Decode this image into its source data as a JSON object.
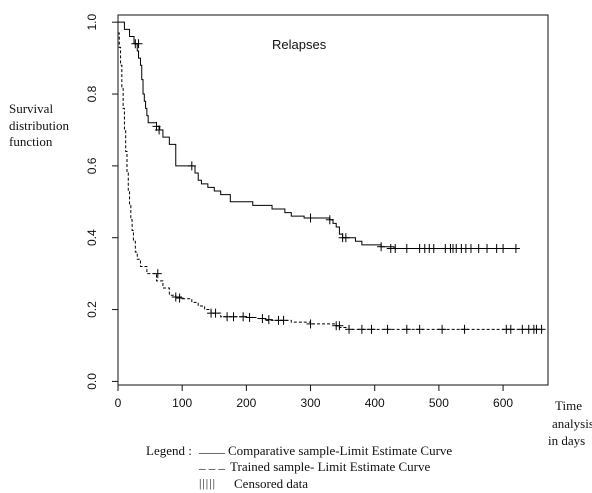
{
  "chart_data": {
    "type": "line",
    "title": "Relapses",
    "ylabel": [
      "Survival",
      "distribution",
      "function"
    ],
    "xlabel": [
      "Time",
      "analysis",
      "in days"
    ],
    "xlim": [
      0,
      670
    ],
    "ylim": [
      -0.01,
      1.02
    ],
    "xticks": [
      0,
      100,
      200,
      300,
      400,
      500,
      600
    ],
    "yticks": [
      0.0,
      0.2,
      0.4,
      0.6,
      0.8,
      1.0
    ],
    "ytick_labels": [
      "0.0",
      "0.2",
      "0.4",
      "0.6",
      "0.8",
      "1.0"
    ],
    "grid": false,
    "series": [
      {
        "key": "comparative",
        "style": "solid",
        "color": "#000000",
        "steps": [
          [
            0,
            1.0
          ],
          [
            10,
            0.98
          ],
          [
            18,
            0.96
          ],
          [
            25,
            0.94
          ],
          [
            30,
            0.92
          ],
          [
            32,
            0.9
          ],
          [
            35,
            0.88
          ],
          [
            37,
            0.84
          ],
          [
            39,
            0.8
          ],
          [
            41,
            0.78
          ],
          [
            43,
            0.76
          ],
          [
            45,
            0.74
          ],
          [
            47,
            0.72
          ],
          [
            60,
            0.71
          ],
          [
            65,
            0.7
          ],
          [
            70,
            0.68
          ],
          [
            80,
            0.66
          ],
          [
            90,
            0.6
          ],
          [
            110,
            0.6
          ],
          [
            120,
            0.58
          ],
          [
            125,
            0.56
          ],
          [
            130,
            0.55
          ],
          [
            140,
            0.54
          ],
          [
            150,
            0.53
          ],
          [
            160,
            0.52
          ],
          [
            175,
            0.5
          ],
          [
            210,
            0.49
          ],
          [
            240,
            0.48
          ],
          [
            260,
            0.47
          ],
          [
            270,
            0.46
          ],
          [
            290,
            0.455
          ],
          [
            330,
            0.45
          ],
          [
            335,
            0.44
          ],
          [
            340,
            0.43
          ],
          [
            345,
            0.41
          ],
          [
            350,
            0.4
          ],
          [
            370,
            0.39
          ],
          [
            380,
            0.38
          ],
          [
            410,
            0.375
          ],
          [
            430,
            0.37
          ],
          [
            620,
            0.37
          ]
        ],
        "censored": [
          [
            27,
            0.94
          ],
          [
            32,
            0.94
          ],
          [
            60,
            0.71
          ],
          [
            64,
            0.7
          ],
          [
            115,
            0.6
          ],
          [
            300,
            0.455
          ],
          [
            330,
            0.45
          ],
          [
            350,
            0.4
          ],
          [
            355,
            0.4
          ],
          [
            410,
            0.375
          ],
          [
            425,
            0.37
          ],
          [
            432,
            0.37
          ],
          [
            450,
            0.37
          ],
          [
            470,
            0.37
          ],
          [
            478,
            0.37
          ],
          [
            485,
            0.37
          ],
          [
            492,
            0.37
          ],
          [
            510,
            0.37
          ],
          [
            518,
            0.37
          ],
          [
            522,
            0.37
          ],
          [
            527,
            0.37
          ],
          [
            535,
            0.37
          ],
          [
            542,
            0.37
          ],
          [
            550,
            0.37
          ],
          [
            562,
            0.37
          ],
          [
            575,
            0.37
          ],
          [
            590,
            0.37
          ],
          [
            600,
            0.37
          ],
          [
            620,
            0.37
          ]
        ]
      },
      {
        "key": "trained",
        "style": "dashed",
        "color": "#000000",
        "steps": [
          [
            0,
            0.97
          ],
          [
            2,
            0.93
          ],
          [
            4,
            0.88
          ],
          [
            6,
            0.82
          ],
          [
            8,
            0.76
          ],
          [
            10,
            0.7
          ],
          [
            12,
            0.64
          ],
          [
            14,
            0.58
          ],
          [
            16,
            0.53
          ],
          [
            18,
            0.49
          ],
          [
            20,
            0.45
          ],
          [
            22,
            0.42
          ],
          [
            24,
            0.39
          ],
          [
            27,
            0.36
          ],
          [
            30,
            0.34
          ],
          [
            35,
            0.32
          ],
          [
            45,
            0.3
          ],
          [
            60,
            0.28
          ],
          [
            70,
            0.26
          ],
          [
            80,
            0.24
          ],
          [
            90,
            0.235
          ],
          [
            100,
            0.23
          ],
          [
            115,
            0.22
          ],
          [
            125,
            0.21
          ],
          [
            135,
            0.2
          ],
          [
            145,
            0.19
          ],
          [
            160,
            0.18
          ],
          [
            200,
            0.178
          ],
          [
            215,
            0.175
          ],
          [
            230,
            0.17
          ],
          [
            270,
            0.165
          ],
          [
            300,
            0.16
          ],
          [
            340,
            0.155
          ],
          [
            345,
            0.15
          ],
          [
            360,
            0.145
          ],
          [
            660,
            0.145
          ]
        ],
        "censored": [
          [
            62,
            0.3
          ],
          [
            90,
            0.235
          ],
          [
            96,
            0.232
          ],
          [
            145,
            0.19
          ],
          [
            152,
            0.19
          ],
          [
            170,
            0.18
          ],
          [
            180,
            0.18
          ],
          [
            195,
            0.18
          ],
          [
            205,
            0.178
          ],
          [
            225,
            0.175
          ],
          [
            235,
            0.172
          ],
          [
            250,
            0.17
          ],
          [
            258,
            0.17
          ],
          [
            300,
            0.16
          ],
          [
            340,
            0.155
          ],
          [
            345,
            0.155
          ],
          [
            360,
            0.145
          ],
          [
            380,
            0.145
          ],
          [
            395,
            0.145
          ],
          [
            420,
            0.145
          ],
          [
            450,
            0.145
          ],
          [
            470,
            0.145
          ],
          [
            505,
            0.145
          ],
          [
            540,
            0.145
          ],
          [
            605,
            0.145
          ],
          [
            612,
            0.145
          ],
          [
            630,
            0.145
          ],
          [
            640,
            0.145
          ],
          [
            648,
            0.145
          ],
          [
            652,
            0.145
          ],
          [
            660,
            0.145
          ]
        ]
      }
    ]
  },
  "legend": {
    "heading": "Legend :",
    "items": [
      {
        "marker": "____",
        "text": "Comparative sample-Limit Estimate Curve"
      },
      {
        "marker": "_ _ _",
        "text": "Trained sample- Limit Estimate Curve"
      },
      {
        "marker": "| | | | |",
        "text": "Censored data"
      }
    ]
  }
}
